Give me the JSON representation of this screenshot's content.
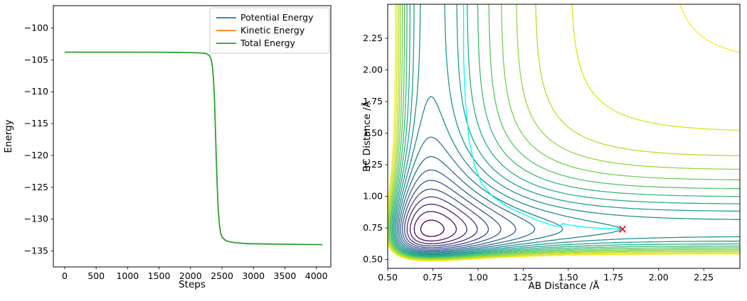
{
  "figure": {
    "background": "#ffffff"
  },
  "chart_data": [
    {
      "id": "energy",
      "type": "line",
      "title": "",
      "xlabel": "Steps",
      "ylabel": "Energy",
      "xlim": [
        -180,
        4230
      ],
      "ylim": [
        -137.5,
        -96.5
      ],
      "xticks": [
        0,
        500,
        1000,
        1500,
        2000,
        2500,
        3000,
        3500,
        4000
      ],
      "xtick_labels": [
        "0",
        "500",
        "1000",
        "1500",
        "2000",
        "2500",
        "3000",
        "3500",
        "4000"
      ],
      "yticks": [
        -100,
        -105,
        -110,
        -115,
        -120,
        -125,
        -130,
        -135
      ],
      "ytick_labels": [
        "−100",
        "−105",
        "−110",
        "−115",
        "−120",
        "−125",
        "−130",
        "−135"
      ],
      "grid": false,
      "legend": {
        "position": "upper right",
        "entries": [
          {
            "label": "Potential Energy",
            "color": "#1f77b4"
          },
          {
            "label": "Kinetic Energy",
            "color": "#ff7f0e"
          },
          {
            "label": "Total Energy",
            "color": "#2ca02c"
          }
        ]
      },
      "series": [
        {
          "name": "Total Energy",
          "color": "#2ca02c",
          "points": [
            [
              0,
              -103.8
            ],
            [
              300,
              -103.8
            ],
            [
              600,
              -103.8
            ],
            [
              900,
              -103.8
            ],
            [
              1200,
              -103.8
            ],
            [
              1500,
              -103.81
            ],
            [
              1800,
              -103.83
            ],
            [
              2000,
              -103.86
            ],
            [
              2100,
              -103.9
            ],
            [
              2200,
              -103.95
            ],
            [
              2250,
              -104.0
            ],
            [
              2300,
              -104.3
            ],
            [
              2330,
              -105.0
            ],
            [
              2350,
              -106.2
            ],
            [
              2365,
              -108.0
            ],
            [
              2380,
              -111.0
            ],
            [
              2395,
              -115.5
            ],
            [
              2410,
              -120.5
            ],
            [
              2425,
              -125.0
            ],
            [
              2440,
              -128.5
            ],
            [
              2460,
              -131.0
            ],
            [
              2480,
              -132.2
            ],
            [
              2500,
              -132.8
            ],
            [
              2550,
              -133.3
            ],
            [
              2600,
              -133.5
            ],
            [
              2700,
              -133.7
            ],
            [
              2900,
              -133.85
            ],
            [
              3200,
              -133.9
            ],
            [
              3600,
              -133.95
            ],
            [
              4100,
              -134.0
            ]
          ]
        }
      ]
    },
    {
      "id": "pes",
      "type": "contour",
      "title": "",
      "xlabel": "AB Distance /Å",
      "ylabel": "BC Distance /Å",
      "xlim": [
        0.5,
        2.45
      ],
      "ylim": [
        0.43,
        2.52
      ],
      "xticks": [
        0.5,
        0.75,
        1.0,
        1.25,
        1.5,
        1.75,
        2.0,
        2.25
      ],
      "xtick_labels": [
        "0.50",
        "0.75",
        "1.00",
        "1.25",
        "1.50",
        "1.75",
        "2.00",
        "2.25"
      ],
      "yticks": [
        0.5,
        0.75,
        1.0,
        1.25,
        1.5,
        1.75,
        2.0,
        2.25
      ],
      "ytick_labels": [
        "0.50",
        "0.75",
        "1.00",
        "1.25",
        "1.50",
        "1.75",
        "2.00",
        "2.25"
      ],
      "surface": {
        "model": "sum_of_morse",
        "D": 100,
        "a": 3.5,
        "r0": 0.74
      },
      "levels": [
        5,
        15,
        25,
        35,
        45,
        55,
        65,
        75,
        85,
        95,
        105,
        115,
        125,
        135,
        145,
        155,
        165,
        175,
        187,
        198
      ],
      "level_colors": [
        "#440154",
        "#481567",
        "#482677",
        "#453781",
        "#404788",
        "#39568C",
        "#33638D",
        "#2D708E",
        "#287D8E",
        "#238A8D",
        "#1F968B",
        "#20A387",
        "#29AF7F",
        "#3CBB75",
        "#55C667",
        "#73D055",
        "#95D840",
        "#B8DE29",
        "#DCE319",
        "#FDE725"
      ],
      "trajectory": {
        "color": "#00ffff",
        "points": [
          [
            0.92,
            2.52
          ],
          [
            0.92,
            2.1
          ],
          [
            0.93,
            1.75
          ],
          [
            0.95,
            1.45
          ],
          [
            0.98,
            1.25
          ],
          [
            1.02,
            1.1
          ],
          [
            1.08,
            1.0
          ],
          [
            1.16,
            0.92
          ],
          [
            1.25,
            0.86
          ],
          [
            1.33,
            0.81
          ],
          [
            1.4,
            0.775
          ],
          [
            1.44,
            0.76
          ],
          [
            1.47,
            0.785
          ],
          [
            1.52,
            0.77
          ],
          [
            1.6,
            0.755
          ],
          [
            1.7,
            0.745
          ],
          [
            1.8,
            0.74
          ]
        ]
      },
      "end_marker": {
        "symbol": "x",
        "color": "#ff0000",
        "point": [
          1.8,
          0.74
        ]
      }
    }
  ]
}
